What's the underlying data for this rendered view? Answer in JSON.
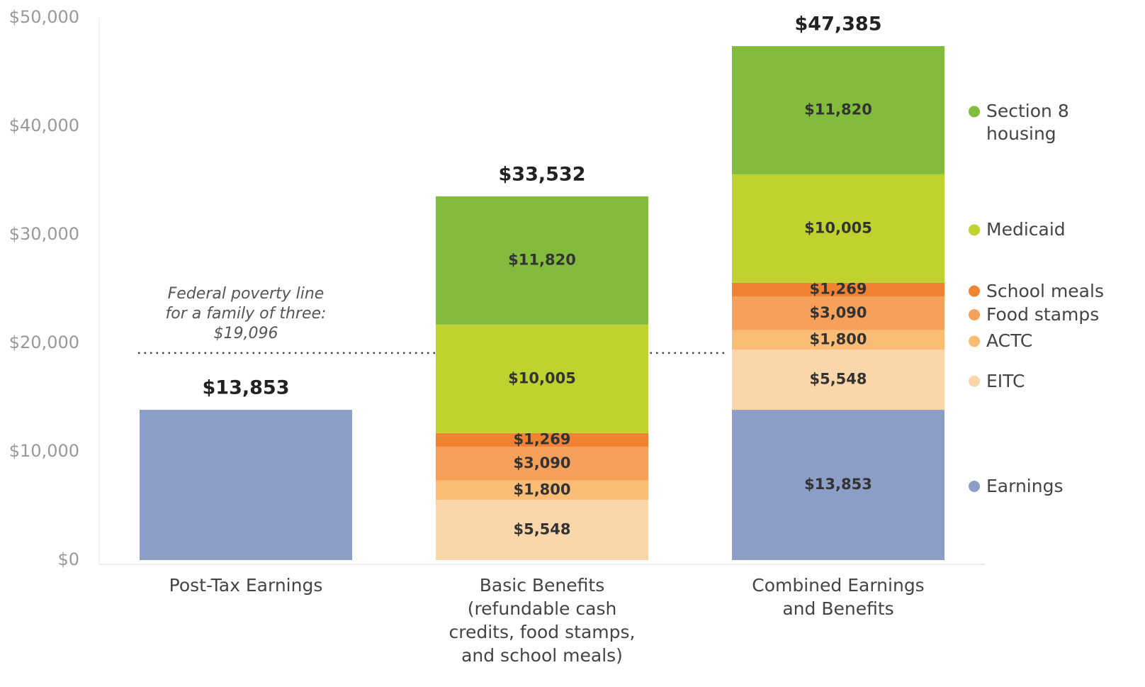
{
  "chart_data": {
    "type": "stacked_bar",
    "categories": [
      [
        "Post-Tax Earnings"
      ],
      [
        "Basic Benefits",
        "(refundable cash",
        "credits, food stamps,",
        "and school meals)"
      ],
      [
        "Combined Earnings",
        "and Benefits"
      ]
    ],
    "series": [
      {
        "name": "Earnings",
        "color": "#8c9dc8",
        "values": [
          13853,
          null,
          13853
        ],
        "value_labels": [
          null,
          null,
          "$13,853"
        ]
      },
      {
        "name": "EITC",
        "color": "#fcd6ab",
        "values": [
          null,
          5548,
          5548
        ],
        "value_labels": [
          null,
          "$5,548",
          "$5,548"
        ]
      },
      {
        "name": "ACTC",
        "color": "#fbbd76",
        "values": [
          null,
          1800,
          1800
        ],
        "value_labels": [
          null,
          "$1,800",
          "$1,800"
        ]
      },
      {
        "name": "Food stamps",
        "color": "#f5a15c",
        "values": [
          null,
          3090,
          3090
        ],
        "value_labels": [
          null,
          "$3,090",
          "$3,090"
        ]
      },
      {
        "name": "School meals",
        "color": "#f08231",
        "values": [
          null,
          1269,
          1269
        ],
        "value_labels": [
          null,
          "$1,269",
          "$1,269"
        ]
      },
      {
        "name": "Medicaid",
        "color": "#bfd22f",
        "values": [
          null,
          10005,
          10005
        ],
        "value_labels": [
          null,
          "$10,005",
          "$10,005"
        ]
      },
      {
        "name": "Section 8 housing",
        "color": "#83bc3d",
        "values": [
          null,
          11820,
          11820
        ],
        "value_labels": [
          null,
          "$11,820",
          "$11,820"
        ]
      }
    ],
    "totals": [
      13853,
      33532,
      47385
    ],
    "total_labels": [
      "$13,853",
      "$33,532",
      "$47,385"
    ],
    "poverty_line": {
      "value": 19096,
      "label": [
        "Federal poverty line",
        "for a family of three:",
        "$19,096"
      ]
    },
    "ylim": [
      0,
      50000
    ],
    "yticks": [
      {
        "value": 0,
        "label": "$0"
      },
      {
        "value": 10000,
        "label": "$10,000"
      },
      {
        "value": 20000,
        "label": "$20,000"
      },
      {
        "value": 30000,
        "label": "$30,000"
      },
      {
        "value": 40000,
        "label": "$40,000"
      },
      {
        "value": 50000,
        "label": "$50,000"
      }
    ],
    "legend": "right"
  }
}
